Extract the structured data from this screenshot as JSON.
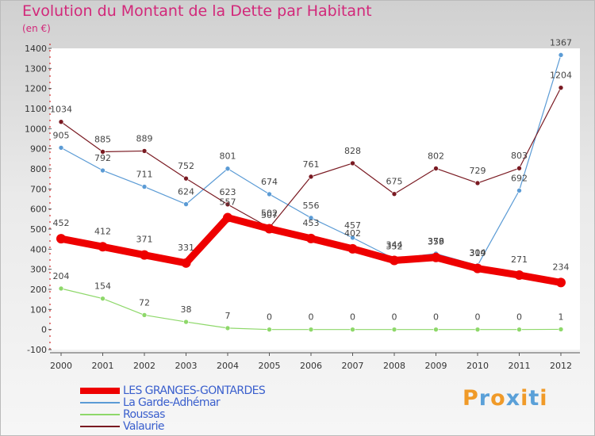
{
  "title": "Evolution du Montant de la Dette par Habitant",
  "unit": "(en €)",
  "logo": {
    "letters": [
      "P",
      "r",
      "o",
      "x",
      "i",
      "t",
      "i"
    ],
    "colors": [
      "#f09a28",
      "#5aa0d8",
      "#f09a28",
      "#5aa0d8",
      "#f09a28",
      "#5aa0d8",
      "#f09a28"
    ]
  },
  "chart_data": {
    "type": "line",
    "title": "Evolution du Montant de la Dette par Habitant",
    "ylabel": "(en €)",
    "xlabel": "",
    "x": [
      "2000",
      "2001",
      "2002",
      "2003",
      "2004",
      "2005",
      "2006",
      "2007",
      "2008",
      "2009",
      "2010",
      "2011",
      "2012"
    ],
    "ylim": [
      -100,
      1400
    ],
    "yticks": [
      "-100",
      "0",
      "100",
      "200",
      "300",
      "400",
      "500",
      "600",
      "700",
      "800",
      "900",
      "1000",
      "1100",
      "1200",
      "1300",
      "1400"
    ],
    "grid": false,
    "legend_position": "bottom-left",
    "series": [
      {
        "name": "LES GRANGES-GONTARDES",
        "color": "#ee0000",
        "values": [
          452,
          412,
          371,
          331,
          557,
          502,
          453,
          402,
          344,
          359,
          304,
          271,
          234
        ]
      },
      {
        "name": "La Garde-Adhémar",
        "color": "#5b9bd5",
        "values": [
          905,
          792,
          711,
          624,
          801,
          674,
          556,
          457,
          352,
          378,
          319,
          692,
          1367
        ]
      },
      {
        "name": "Roussas",
        "color": "#8ed86a",
        "values": [
          204,
          154,
          72,
          38,
          7,
          0,
          0,
          0,
          0,
          0,
          0,
          0,
          1
        ]
      },
      {
        "name": "Valaurie",
        "color": "#7a1a22",
        "values": [
          1034,
          885,
          889,
          752,
          623,
          507,
          761,
          828,
          675,
          802,
          729,
          803,
          1204
        ]
      }
    ]
  }
}
